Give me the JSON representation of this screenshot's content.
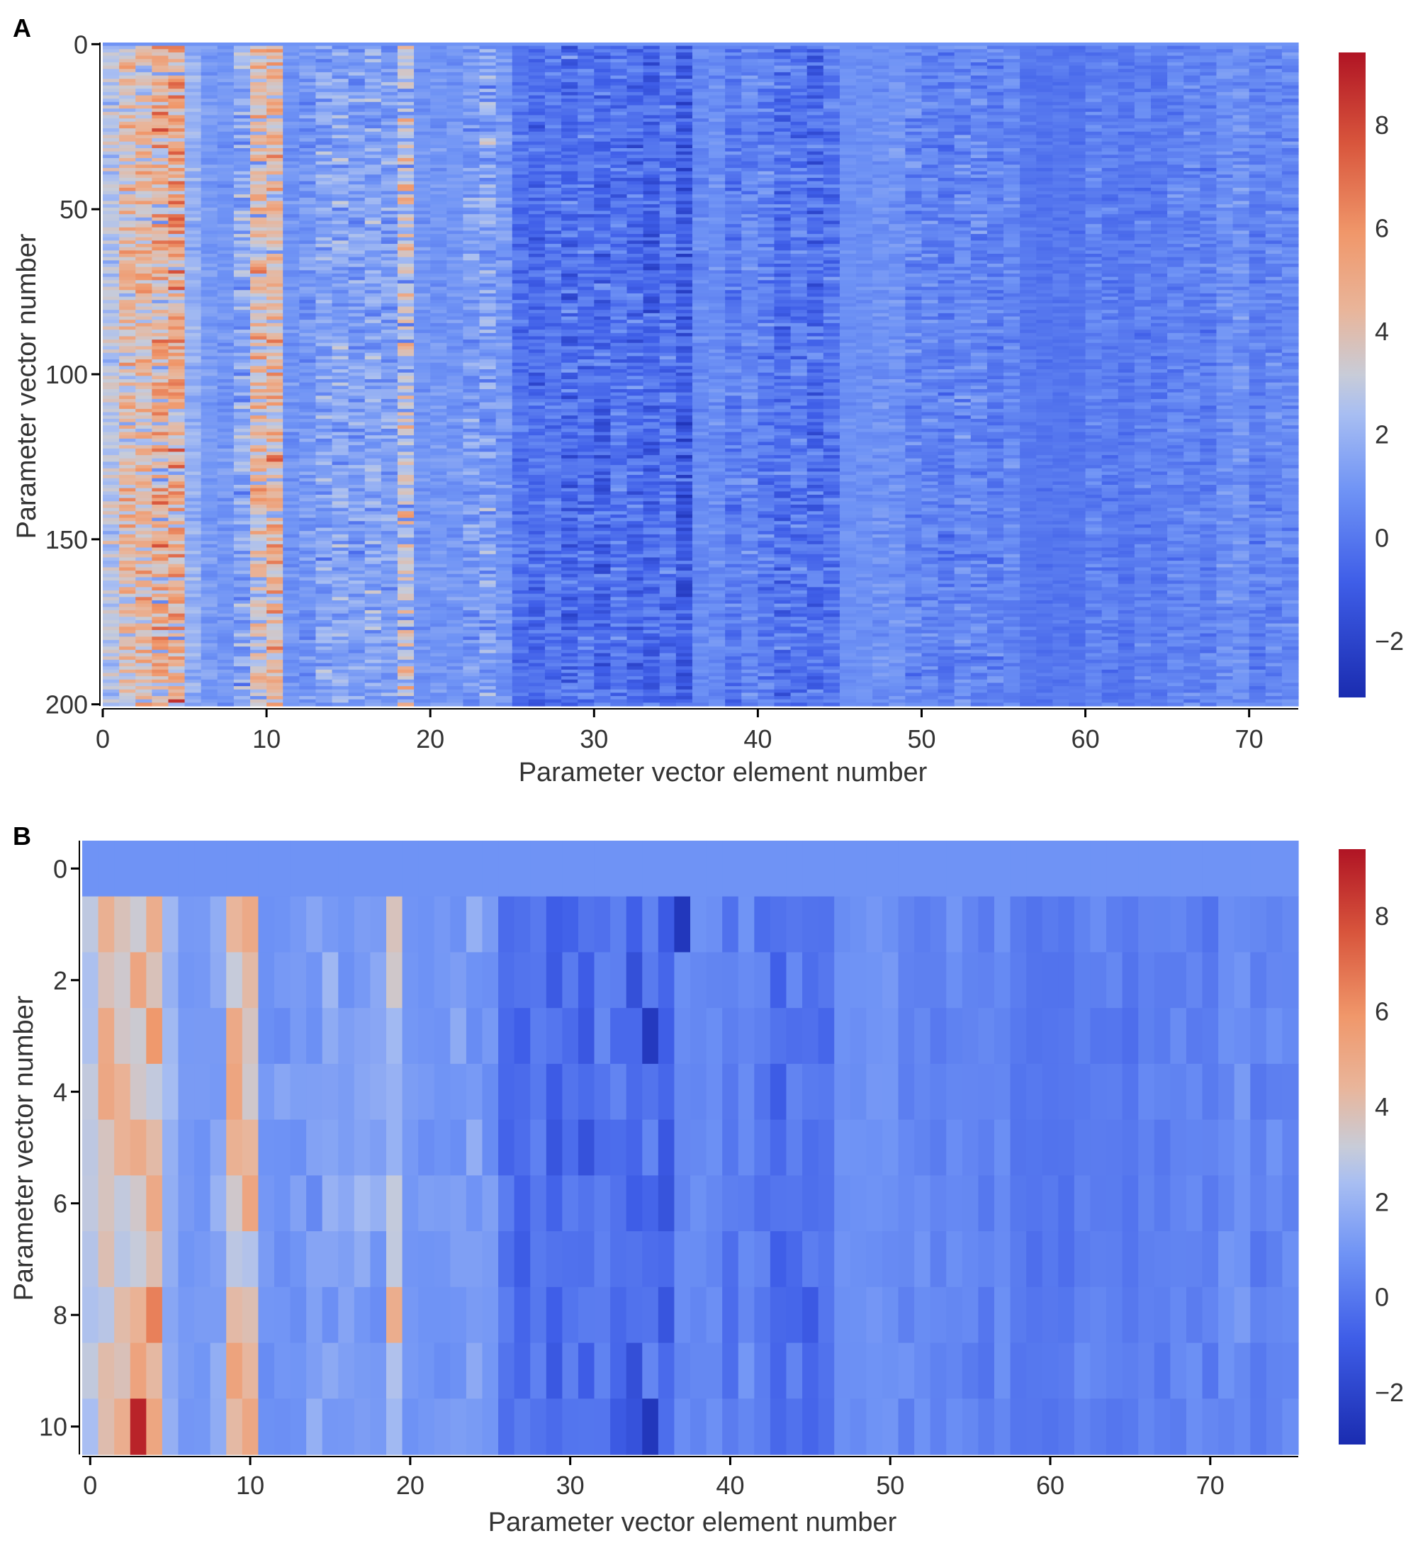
{
  "chart_data": [
    {
      "panel_label": "A",
      "type": "heatmap",
      "title": "",
      "xlabel": "Parameter vector element number",
      "ylabel": "Parameter vector number",
      "xlim": [
        0,
        73
      ],
      "ylim": [
        0,
        201
      ],
      "x_ticks": [
        0,
        10,
        20,
        30,
        40,
        50,
        60,
        70
      ],
      "y_ticks": [
        0,
        50,
        100,
        150,
        200
      ],
      "n_rows": 201,
      "n_cols": 73,
      "colorbar": {
        "min": -3.1,
        "max": 9.4,
        "ticks": [
          -2,
          0,
          2,
          4,
          6,
          8
        ]
      },
      "column_means": [
        2.8,
        3.9,
        3.9,
        4.3,
        4.7,
        1.9,
        1.1,
        1.0,
        1.6,
        3.8,
        4.2,
        0.9,
        1.0,
        1.4,
        1.5,
        1.3,
        1.5,
        1.3,
        2.9,
        1.0,
        1.0,
        1.0,
        1.2,
        1.4,
        1.0,
        -0.2,
        -0.4,
        0.0,
        -0.5,
        -0.1,
        -0.6,
        0.0,
        -0.3,
        -0.6,
        0.0,
        -1.0,
        0.6,
        0.7,
        0.1,
        0.5,
        0.2,
        -0.3,
        0.0,
        -0.4,
        0.0,
        0.8,
        0.8,
        0.9,
        0.9,
        0.5,
        0.5,
        0.2,
        0.6,
        0.5,
        0.3,
        0.6,
        0.0,
        -0.1,
        0.0,
        -0.1,
        0.3,
        0.2,
        0.0,
        0.3,
        0.1,
        0.4,
        0.4,
        0.3,
        0.8,
        0.9,
        0.3,
        0.5,
        0.6
      ],
      "column_spread": [
        0.6,
        1.1,
        1.1,
        1.4,
        1.6,
        0.4,
        0.3,
        0.3,
        0.8,
        1.4,
        1.3,
        0.3,
        0.5,
        0.7,
        0.7,
        0.6,
        0.7,
        0.6,
        1.2,
        0.3,
        0.3,
        0.3,
        0.6,
        0.8,
        0.4,
        0.5,
        0.6,
        0.5,
        0.8,
        0.6,
        0.8,
        0.6,
        0.7,
        0.8,
        0.6,
        0.8,
        0.3,
        0.3,
        0.5,
        0.5,
        0.6,
        0.7,
        0.6,
        0.7,
        0.6,
        0.2,
        0.2,
        0.3,
        0.3,
        0.5,
        0.5,
        0.5,
        0.5,
        0.5,
        0.5,
        0.4,
        0.2,
        0.2,
        0.2,
        0.2,
        0.4,
        0.4,
        0.3,
        0.4,
        0.3,
        0.4,
        0.4,
        0.4,
        0.4,
        0.4,
        0.4,
        0.4,
        0.4
      ],
      "first_row_value": 0.9
    },
    {
      "panel_label": "B",
      "type": "heatmap",
      "title": "",
      "xlabel": "Parameter vector element number",
      "ylabel": "Parameter vector number",
      "xlim": [
        0,
        76
      ],
      "ylim": [
        0,
        11
      ],
      "x_ticks": [
        0,
        10,
        20,
        30,
        40,
        50,
        60,
        70
      ],
      "y_ticks": [
        0,
        2,
        4,
        6,
        8,
        10
      ],
      "n_rows": 11,
      "n_cols": 76,
      "colorbar": {
        "min": -3.1,
        "max": 9.4,
        "ticks": [
          -2,
          0,
          2,
          4,
          6,
          8
        ]
      },
      "first_row_value": 0.9,
      "highlights": [
        {
          "row": 10,
          "col": 3,
          "value": 9.0
        },
        {
          "row": 8,
          "col": 4,
          "value": 6.5
        },
        {
          "row": 1,
          "col": 10,
          "value": 5.0
        },
        {
          "row": 4,
          "col": 9,
          "value": 5.2
        },
        {
          "row": 9,
          "col": 9,
          "value": 5.3
        },
        {
          "row": 8,
          "col": 19,
          "value": 4.8
        },
        {
          "row": 1,
          "col": 37,
          "value": -2.6
        },
        {
          "row": 3,
          "col": 35,
          "value": -2.5
        },
        {
          "row": 10,
          "col": 35,
          "value": -2.6
        }
      ]
    }
  ]
}
